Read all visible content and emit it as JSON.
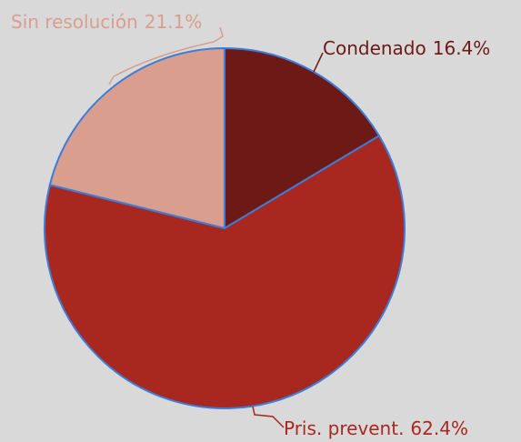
{
  "chart_data": {
    "type": "pie",
    "categories": [
      "Condenado",
      "Pris. prevent.",
      "Sin resolución"
    ],
    "values": [
      16.4,
      62.4,
      21.1
    ],
    "value_labels": [
      "16.4%",
      "62.4%",
      "21.1%"
    ],
    "colors": [
      "#6d1a16",
      "#a82820",
      "#d99e8e"
    ],
    "edge_color": "#3b7dd8"
  }
}
